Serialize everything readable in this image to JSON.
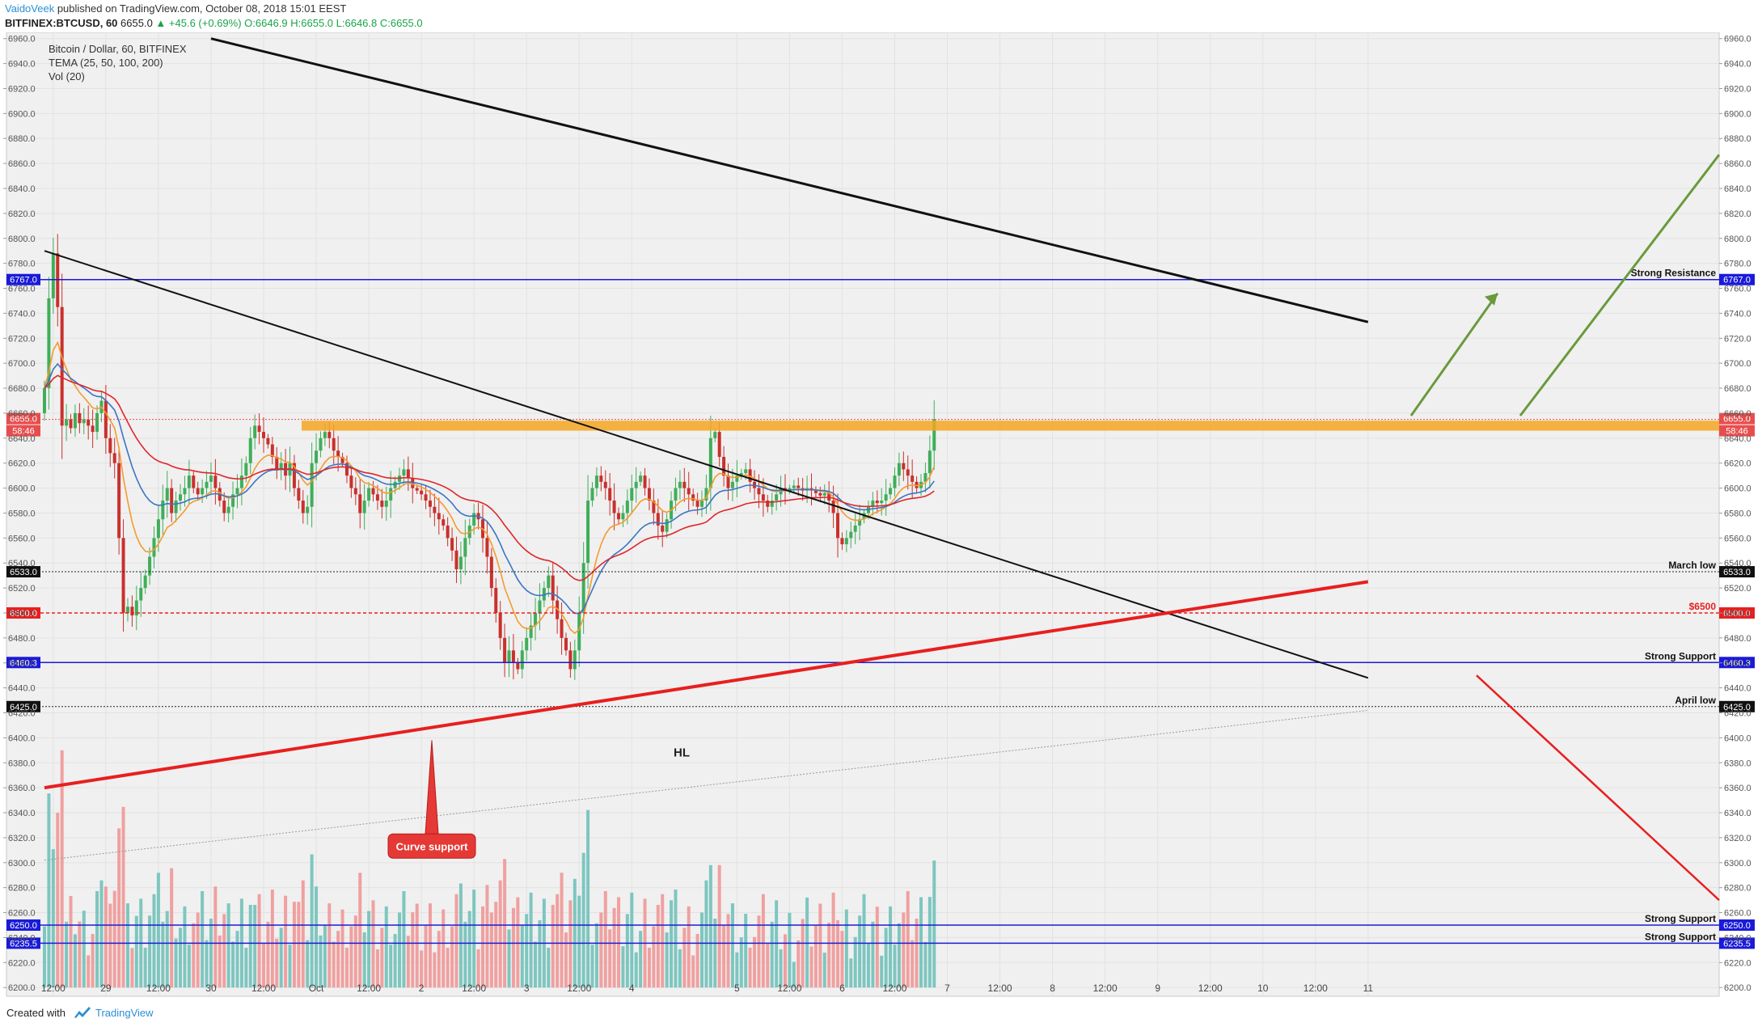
{
  "header": {
    "author": "VaidoVeek",
    "published": "published on TradingView.com, October 08, 2018 15:01 EEST",
    "symbol": "BITFINEX:BTCUSD, 60",
    "last": "6655.0",
    "change": "+45.6 (+0.69%)",
    "ohlc": "O:6646.9 H:6655.0 L:6646.8 C:6655.0"
  },
  "legend": {
    "title": "Bitcoin / Dollar, 60, BITFINEX",
    "tema": "TEMA (25, 50, 100, 200)",
    "vol": "Vol (20)"
  },
  "footer": {
    "created": "Created with",
    "brand": "TradingView"
  },
  "colors": {
    "up": "#3fae5a",
    "down": "#c9302c",
    "vol_up": "#7ec6c0",
    "vol_down": "#f0a0a0",
    "tema_orange": "#f59a2f",
    "tema_blue": "#3a75c4",
    "tema_red": "#e0262b",
    "level_blue": "#1a1ad9",
    "trend_red": "#e81f1f",
    "arrow_green": "#6a9a3c",
    "resistance_zone": "#f5a623",
    "price_tag": "#e84d4d"
  },
  "chart_data": {
    "type": "candlestick",
    "title": "Bitcoin / Dollar, 60, BITFINEX",
    "ylim": [
      6193,
      6965
    ],
    "y_ticks": [
      6200,
      6220,
      6240,
      6260,
      6280,
      6300,
      6320,
      6340,
      6360,
      6380,
      6400,
      6420,
      6440,
      6460,
      6480,
      6500,
      6520,
      6540,
      6560,
      6580,
      6600,
      6620,
      6640,
      6660,
      6680,
      6700,
      6720,
      6740,
      6760,
      6780,
      6800,
      6820,
      6840,
      6860,
      6880,
      6900,
      6920,
      6940,
      6960
    ],
    "x_ticks": [
      {
        "label": "12:00",
        "i": 2
      },
      {
        "label": "29",
        "i": 14
      },
      {
        "label": "12:00",
        "i": 26
      },
      {
        "label": "30",
        "i": 38
      },
      {
        "label": "12:00",
        "i": 50
      },
      {
        "label": "Oct",
        "i": 62
      },
      {
        "label": "12:00",
        "i": 74
      },
      {
        "label": "2",
        "i": 86
      },
      {
        "label": "12:00",
        "i": 98
      },
      {
        "label": "3",
        "i": 110
      },
      {
        "label": "12:00",
        "i": 122
      },
      {
        "label": "4",
        "i": 134
      },
      {
        "label": "5",
        "i": 158
      },
      {
        "label": "12:00",
        "i": 170
      },
      {
        "label": "6",
        "i": 182
      },
      {
        "label": "12:00",
        "i": 194
      },
      {
        "label": "7",
        "i": 206
      },
      {
        "label": "12:00",
        "i": 218
      },
      {
        "label": "8",
        "i": 230
      },
      {
        "label": "12:00",
        "i": 242
      },
      {
        "label": "9",
        "i": 254
      },
      {
        "label": "12:00",
        "i": 266
      },
      {
        "label": "10",
        "i": 278
      },
      {
        "label": "12:00",
        "i": 290
      },
      {
        "label": "11",
        "i": 302
      }
    ],
    "closes": [
      6680,
      6752,
      6788,
      6745,
      6650,
      6655,
      6648,
      6660,
      6652,
      6655,
      6650,
      6645,
      6660,
      6670,
      6640,
      6628,
      6620,
      6560,
      6500,
      6505,
      6498,
      6510,
      6520,
      6530,
      6545,
      6560,
      6575,
      6590,
      6600,
      6580,
      6590,
      6595,
      6600,
      6610,
      6600,
      6595,
      6600,
      6605,
      6610,
      6600,
      6590,
      6580,
      6585,
      6595,
      6600,
      6610,
      6620,
      6640,
      6650,
      6645,
      6640,
      6635,
      6625,
      6615,
      6620,
      6610,
      6620,
      6600,
      6590,
      6580,
      6585,
      6620,
      6630,
      6640,
      6645,
      6640,
      6630,
      6625,
      6620,
      6610,
      6600,
      6595,
      6580,
      6590,
      6600,
      6595,
      6590,
      6585,
      6590,
      6600,
      6605,
      6610,
      6615,
      6608,
      6600,
      6598,
      6595,
      6590,
      6585,
      6580,
      6575,
      6570,
      6560,
      6550,
      6535,
      6545,
      6560,
      6570,
      6580,
      6575,
      6560,
      6545,
      6520,
      6500,
      6480,
      6460,
      6470,
      6460,
      6455,
      6470,
      6480,
      6490,
      6500,
      6510,
      6520,
      6530,
      6510,
      6495,
      6480,
      6470,
      6455,
      6470,
      6500,
      6540,
      6590,
      6600,
      6610,
      6605,
      6600,
      6590,
      6580,
      6575,
      6580,
      6590,
      6600,
      6605,
      6610,
      6600,
      6590,
      6580,
      6570,
      6565,
      6575,
      6590,
      6600,
      6605,
      6600,
      6595,
      6590,
      6585,
      6590,
      6600,
      6640,
      6645,
      6625,
      6610,
      6600,
      6605,
      6610,
      6612,
      6615,
      6605,
      6600,
      6595,
      6590,
      6585,
      6590,
      6595,
      6600,
      6598,
      6600,
      6602,
      6600,
      6598,
      6600,
      6598,
      6596,
      6594,
      6596,
      6590,
      6580,
      6560,
      6555,
      6560,
      6565,
      6570,
      6575,
      6580,
      6585,
      6590,
      6588,
      6590,
      6595,
      6600,
      6610,
      6620,
      6615,
      6610,
      6605,
      6600,
      6605,
      6612,
      6630,
      6655
    ],
    "levels": [
      {
        "price": 6767.0,
        "tag": "6767.0",
        "label": "Strong Resistance",
        "style": "solid-blue"
      },
      {
        "price": 6533.0,
        "tag": "6533.0",
        "label": "March low",
        "style": "dotted-black"
      },
      {
        "price": 6500.0,
        "tag": "6500.0",
        "label": "$6500",
        "style": "dashed-red"
      },
      {
        "price": 6460.3,
        "tag": "6460.3",
        "label": "Strong Support",
        "style": "solid-blue"
      },
      {
        "price": 6425.0,
        "tag": "6425.0",
        "label": "April low",
        "style": "dotted-black"
      },
      {
        "price": 6250.0,
        "tag": "6250.0",
        "label": "Strong Support",
        "style": "solid-blue"
      },
      {
        "price": 6235.5,
        "tag": "6235.5",
        "label": "Strong Support",
        "style": "solid-blue"
      }
    ],
    "last_price": {
      "tag": "6655.0",
      "countdown": "58:46"
    },
    "resistance_zone": [
      6646,
      6654
    ],
    "annotations": [
      {
        "text": "HL"
      },
      {
        "text": "Curve support"
      }
    ],
    "trendlines": [
      {
        "name": "upper-descending",
        "color": "black",
        "p1": {
          "i": 38,
          "price": 6960
        },
        "p2": {
          "i": 302,
          "price": 6733
        }
      },
      {
        "name": "middle-descending",
        "color": "black",
        "p1": {
          "i": 0,
          "price": 6790
        },
        "p2": {
          "i": 302,
          "price": 6448
        }
      },
      {
        "name": "rising-support",
        "color": "red",
        "p1": {
          "i": 0,
          "price": 6360
        },
        "p2": {
          "i": 302,
          "price": 6525
        }
      },
      {
        "name": "faint-rising",
        "color": "gray",
        "p1": {
          "i": 0,
          "price": 6302
        },
        "p2": {
          "i": 302,
          "price": 6422
        }
      }
    ]
  }
}
